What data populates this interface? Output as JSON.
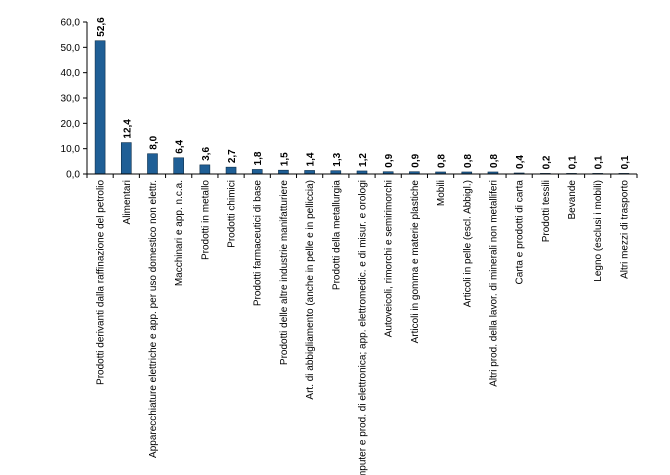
{
  "chart_data": {
    "type": "bar",
    "title": "",
    "xlabel": "",
    "ylabel": "",
    "ylim": [
      0,
      60
    ],
    "y_ticks": [
      "0,0",
      "10,0",
      "20,0",
      "30,0",
      "40,0",
      "50,0",
      "60,0"
    ],
    "grid": false,
    "bar_color": "#1F5F96",
    "bar_edge_color": "#0D2E4A",
    "categories": [
      "Prodotti derivanti dalla raffinazione del petrolio",
      "Alimentari",
      "Apparecchiature elettriche e app. per uso domestico non elettr.",
      "Macchinari e app. n.c.a.",
      "Prodotti in metallo",
      "Prodotti chimici",
      "Prodotti farmaceutici di base",
      "Prodotti delle altre industrie manifatturiere",
      "Art. di abbigliamento (anche in pelle e in pelliccia)",
      "Prodotti della metallurgia",
      "Computer e prod. di elettronica; app. elettromedic. e di misur. e orologi",
      "Autoveicoli, rimorchi e semirimorchi",
      "Articoli in gomma e materie plastiche",
      "Mobili",
      "Articoli in pelle (escl. Abbigl.)",
      "Altri prod. della lavor. di minerali non metalliferi",
      "Carta e prodotti di carta",
      "Prodotti tessili",
      "Bevande",
      "Legno (esclusi i mobili)",
      "Altri mezzi di trasporto"
    ],
    "values": [
      52.6,
      12.4,
      8.0,
      6.4,
      3.6,
      2.7,
      1.8,
      1.5,
      1.4,
      1.3,
      1.2,
      0.9,
      0.9,
      0.8,
      0.8,
      0.8,
      0.4,
      0.2,
      0.1,
      0.1,
      0.1
    ],
    "value_labels": [
      "52,6",
      "12,4",
      "8,0",
      "6,4",
      "3,6",
      "2,7",
      "1,8",
      "1,5",
      "1,4",
      "1,3",
      "1,2",
      "0,9",
      "0,9",
      "0,8",
      "0,8",
      "0,8",
      "0,4",
      "0,2",
      "0,1",
      "0,1",
      "0,1"
    ]
  }
}
